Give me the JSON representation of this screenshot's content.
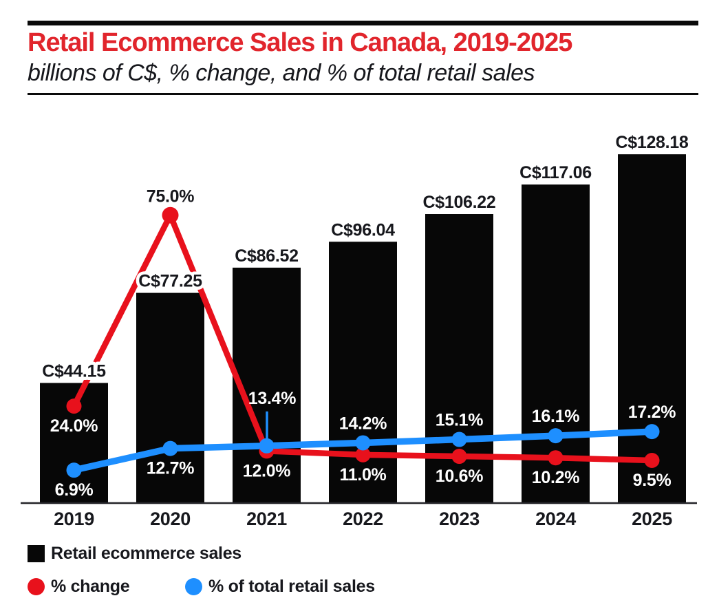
{
  "header": {
    "title": "Retail Ecommerce Sales in Canada, 2019-2025",
    "subtitle": "billions of C$, % change, and % of total retail sales"
  },
  "colors": {
    "title_red": "#e1252c",
    "red": "#e8111c",
    "blue": "#1e8fff",
    "bar_black": "#070707",
    "axis": "#26262b",
    "dark_text": "#17181d",
    "light_text": "#ffffff",
    "background": "#ffffff"
  },
  "chart_data": {
    "type": "bar",
    "subtype": "bar-with-two-line-series",
    "title": "Retail Ecommerce Sales in Canada, 2019-2025",
    "subtitle": "billions of C$, % change, and % of total retail sales",
    "categories": [
      "2019",
      "2020",
      "2021",
      "2022",
      "2023",
      "2024",
      "2025"
    ],
    "grid": false,
    "legend_position": "bottom-left",
    "bar_axis": {
      "min": 0,
      "implied_max": 128.18,
      "unit": "billions of C$"
    },
    "line_axis": {
      "min": 0,
      "implied_max": 90,
      "unit": "%"
    },
    "series": [
      {
        "name": "Retail ecommerce sales",
        "type": "bar",
        "unit": "billions of C$",
        "values": [
          44.15,
          77.25,
          86.52,
          96.04,
          106.22,
          117.06,
          128.18
        ],
        "labels": [
          "C$44.15",
          "C$77.25",
          "C$86.52",
          "C$96.04",
          "C$106.22",
          "C$117.06",
          "C$128.18"
        ]
      },
      {
        "name": "% change",
        "type": "line",
        "color_key": "red",
        "values": [
          24.0,
          75.0,
          12.0,
          11.0,
          10.6,
          10.2,
          9.5
        ],
        "labels": [
          "24.0%",
          "75.0%",
          "12.0%",
          "11.0%",
          "10.6%",
          "10.2%",
          "9.5%"
        ],
        "label_positions": [
          "below",
          "above",
          "below",
          "below",
          "below",
          "below",
          "below"
        ]
      },
      {
        "name": "% of total retail sales",
        "type": "line",
        "color_key": "blue",
        "values": [
          6.9,
          12.7,
          13.4,
          14.2,
          15.1,
          16.1,
          17.2
        ],
        "labels": [
          "6.9%",
          "12.7%",
          "13.4%",
          "14.2%",
          "15.1%",
          "16.1%",
          "17.2%"
        ],
        "label_positions": [
          "below",
          "below",
          "leader-above",
          "above",
          "above",
          "above",
          "above"
        ]
      }
    ]
  },
  "legend": {
    "items": [
      {
        "label": "Retail ecommerce sales",
        "swatch": "black-square"
      },
      {
        "label": "% change",
        "swatch": "red-circle"
      },
      {
        "label": "% of total retail sales",
        "swatch": "blue-circle"
      }
    ]
  }
}
